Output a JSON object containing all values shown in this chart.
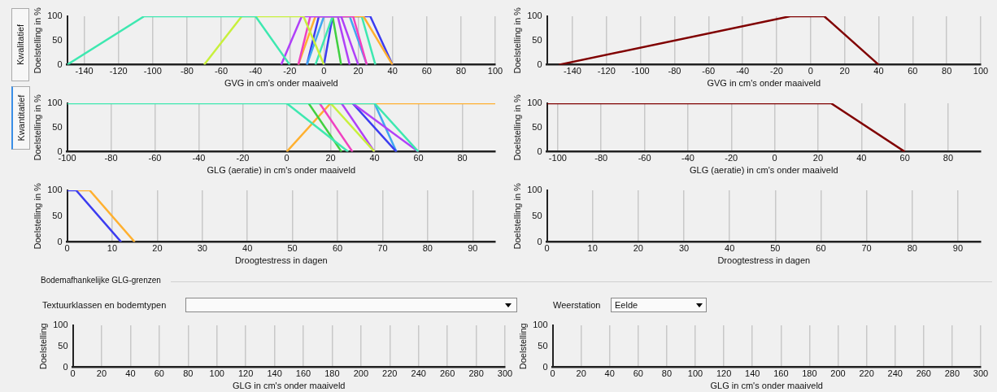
{
  "chart_data": [
    {
      "type": "line",
      "xlabel": "GVG in cm's onder maaiveld",
      "ylabel": "Doelstelling in %",
      "xlim": [
        -150,
        100
      ],
      "xticks": [
        -140,
        -120,
        -100,
        -80,
        -60,
        -40,
        -20,
        0,
        20,
        40,
        60,
        80,
        100
      ],
      "ylim": [
        0,
        100
      ],
      "yticks": [
        0,
        50,
        100
      ],
      "grid": "x",
      "legend": false,
      "series": [
        {
          "color": "#3ee8b0",
          "x": [
            -150,
            -105,
            -40,
            -20
          ],
          "values": [
            0,
            100,
            100,
            0
          ]
        },
        {
          "color": "#c8f03c",
          "x": [
            -70,
            -48,
            -12,
            0
          ],
          "values": [
            0,
            100,
            100,
            0
          ]
        },
        {
          "color": "#b040f8",
          "x": [
            -25,
            -13,
            10,
            20
          ],
          "values": [
            0,
            100,
            100,
            0
          ]
        },
        {
          "color": "#f040c0",
          "x": [
            -15,
            -8,
            17,
            25
          ],
          "values": [
            0,
            100,
            100,
            0
          ]
        },
        {
          "color": "#ffb030",
          "x": [
            -15,
            -5,
            23,
            40
          ],
          "values": [
            0,
            100,
            100,
            0
          ]
        },
        {
          "color": "#40a8f0",
          "x": [
            -10,
            0,
            15,
            25
          ],
          "values": [
            0,
            100,
            100,
            0
          ]
        },
        {
          "color": "#3ee8b0",
          "x": [
            -5,
            5,
            22,
            30
          ],
          "values": [
            0,
            100,
            100,
            0
          ]
        },
        {
          "color": "#3c3cf0",
          "x": [
            -10,
            -3,
            27,
            40
          ],
          "values": [
            0,
            100,
            100,
            0
          ]
        },
        {
          "color": "#40d040",
          "x": [
            5,
            10
          ],
          "values": [
            100,
            0
          ]
        },
        {
          "color": "#3c3cf0",
          "x": [
            0,
            5
          ],
          "values": [
            0,
            100
          ]
        },
        {
          "color": "#b040f8",
          "x": [
            8,
            15
          ],
          "values": [
            100,
            0
          ]
        }
      ]
    },
    {
      "type": "line",
      "xlabel": "GVG in cm's onder maaiveld",
      "ylabel": "Doelstelling in %",
      "xlim": [
        -155,
        100
      ],
      "xticks": [
        -140,
        -120,
        -100,
        -80,
        -60,
        -40,
        -20,
        0,
        20,
        40,
        60,
        80,
        100
      ],
      "ylim": [
        0,
        100
      ],
      "yticks": [
        0,
        50,
        100
      ],
      "grid": "x",
      "legend": false,
      "series": [
        {
          "color": "#800000",
          "x": [
            -148,
            -12,
            8,
            40
          ],
          "values": [
            0,
            100,
            100,
            0
          ]
        }
      ]
    },
    {
      "type": "line",
      "xlabel": "GLG (aeratie) in cm's onder maaiveld",
      "ylabel": "Doelstelling in %",
      "xlim": [
        -100,
        95
      ],
      "xticks": [
        -100,
        -80,
        -60,
        -40,
        -20,
        0,
        20,
        40,
        60,
        80
      ],
      "ylim": [
        0,
        100
      ],
      "yticks": [
        0,
        50,
        100
      ],
      "grid": "x",
      "legend": false,
      "series": [
        {
          "color": "#3ee8b0",
          "x": [
            -100,
            40,
            60
          ],
          "values": [
            100,
            100,
            0
          ]
        },
        {
          "color": "#3ee8b0",
          "x": [
            0,
            28
          ],
          "values": [
            100,
            0
          ]
        },
        {
          "color": "#40d040",
          "x": [
            10,
            25
          ],
          "values": [
            100,
            0
          ]
        },
        {
          "color": "#f040c0",
          "x": [
            15,
            30
          ],
          "values": [
            100,
            0
          ]
        },
        {
          "color": "#c8f03c",
          "x": [
            20,
            40
          ],
          "values": [
            100,
            0
          ]
        },
        {
          "color": "#b040f8",
          "x": [
            25,
            40
          ],
          "values": [
            100,
            0
          ]
        },
        {
          "color": "#b040f8",
          "x": [
            30,
            60
          ],
          "values": [
            100,
            0
          ]
        },
        {
          "color": "#3c3cf0",
          "x": [
            30,
            50
          ],
          "values": [
            100,
            0
          ]
        },
        {
          "color": "#40a8f0",
          "x": [
            40,
            50
          ],
          "values": [
            100,
            0
          ]
        },
        {
          "color": "#ffb030",
          "x": [
            0,
            20,
            95
          ],
          "values": [
            0,
            100,
            100
          ]
        }
      ]
    },
    {
      "type": "line",
      "xlabel": "GLG (aeratie) in cm's onder maaiveld",
      "ylabel": "Doelstelling in %",
      "xlim": [
        -105,
        95
      ],
      "xticks": [
        -100,
        -80,
        -60,
        -40,
        -20,
        0,
        20,
        40,
        60,
        80
      ],
      "ylim": [
        0,
        100
      ],
      "yticks": [
        0,
        50,
        100
      ],
      "grid": "x",
      "legend": false,
      "series": [
        {
          "color": "#800000",
          "x": [
            -105,
            26,
            60
          ],
          "values": [
            100,
            100,
            0
          ]
        }
      ]
    },
    {
      "type": "line",
      "xlabel": "Droogtestress in dagen",
      "ylabel": "Doelstelling in %",
      "xlim": [
        0,
        95
      ],
      "xticks": [
        0,
        10,
        20,
        30,
        40,
        50,
        60,
        70,
        80,
        90
      ],
      "ylim": [
        0,
        100
      ],
      "yticks": [
        0,
        50,
        100
      ],
      "grid": "x",
      "legend": false,
      "series": [
        {
          "color": "#3c3cf0",
          "x": [
            0,
            2,
            12
          ],
          "values": [
            100,
            100,
            0
          ]
        },
        {
          "color": "#ffb030",
          "x": [
            2,
            5,
            15
          ],
          "values": [
            100,
            100,
            0
          ]
        }
      ]
    },
    {
      "type": "line",
      "xlabel": "Droogtestress in dagen",
      "ylabel": "Doelstelling in %",
      "xlim": [
        0,
        95
      ],
      "xticks": [
        0,
        10,
        20,
        30,
        40,
        50,
        60,
        70,
        80,
        90
      ],
      "ylim": [
        0,
        100
      ],
      "yticks": [
        0,
        50,
        100
      ],
      "grid": "x",
      "legend": false
    },
    {
      "type": "line",
      "xlabel": "GLG in cm's onder maaiveld",
      "ylabel": "Doelstelling",
      "xlim": [
        0,
        300
      ],
      "xticks": [
        0,
        20,
        40,
        60,
        80,
        100,
        120,
        140,
        160,
        180,
        200,
        220,
        240,
        260,
        280,
        300
      ],
      "ylim": [
        0,
        100
      ],
      "yticks": [
        0,
        50,
        100
      ],
      "grid": "x",
      "legend": false
    },
    {
      "type": "line",
      "xlabel": "GLG in cm's onder maaiveld",
      "ylabel": "Doelstelling",
      "xlim": [
        0,
        300
      ],
      "xticks": [
        0,
        20,
        40,
        60,
        80,
        100,
        120,
        140,
        160,
        180,
        200,
        220,
        240,
        260,
        280,
        300
      ],
      "ylim": [
        0,
        100
      ],
      "yticks": [
        0,
        50,
        100
      ],
      "grid": "x",
      "legend": false
    },
    {
      "type": "other",
      "annotations": [
        "Kwalitatief",
        "Kwantitatief",
        "Bodemafhankelijke GLG-grenzen",
        "Textuurklassen en bodemtypen",
        "Weerstation",
        "Eelde"
      ]
    }
  ]
}
